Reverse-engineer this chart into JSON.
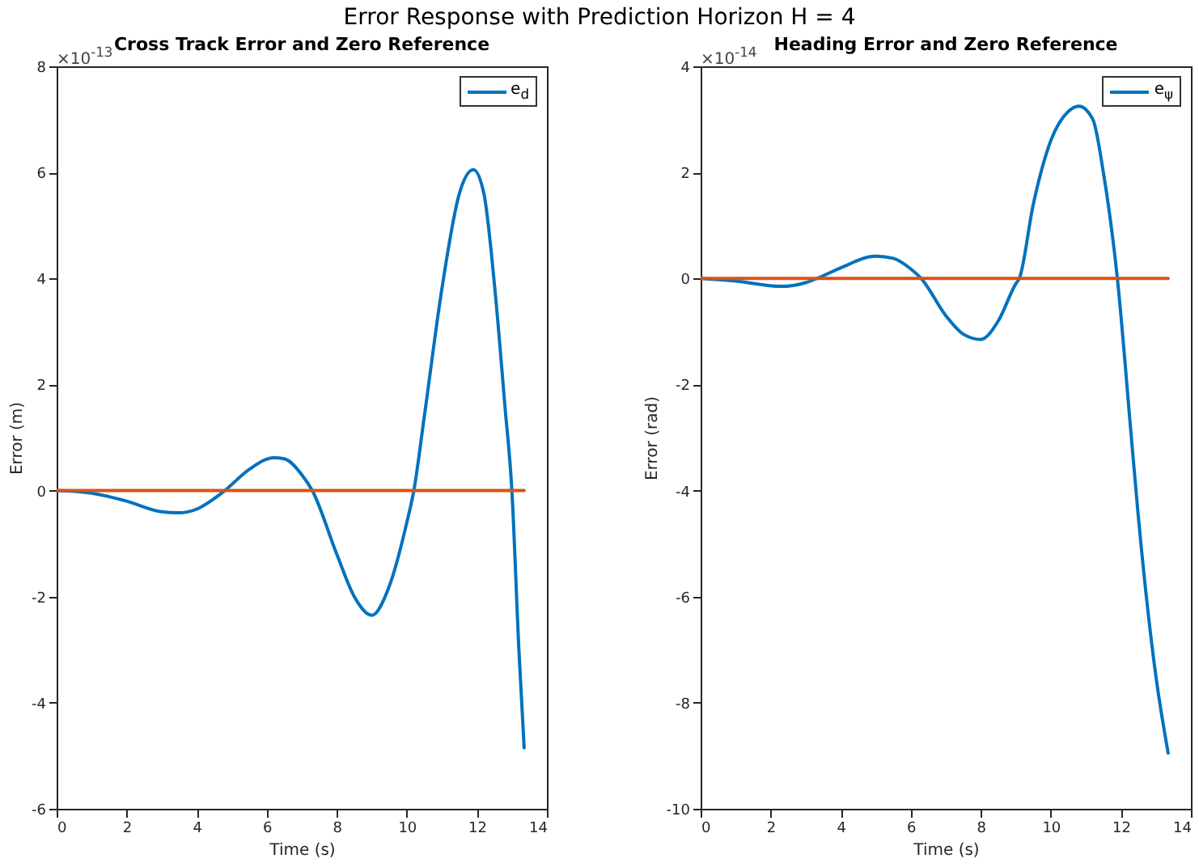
{
  "chart_data": [
    {
      "type": "line",
      "title": "Cross Track Error and Zero Reference",
      "xlabel": "Time (s)",
      "ylabel": "Error (m)",
      "annotations": [
        "Error Response with Prediction Horizon H = 4",
        "×10$^{-13}$"
      ],
      "xlim": [
        0,
        14
      ],
      "ylim": [
        -6,
        8
      ],
      "xticks": [
        0,
        2,
        4,
        6,
        8,
        10,
        12,
        14
      ],
      "yticks": [
        -6,
        -4,
        -2,
        0,
        2,
        4,
        6,
        8
      ],
      "legend": "top right",
      "series": [
        {
          "name": "e$_{d}$",
          "color": "#0072bd",
          "x": [
            0,
            1,
            2,
            3,
            3.5,
            4,
            4.5,
            4.8,
            5.5,
            6.2,
            6.5,
            7,
            7.3,
            8,
            8.5,
            9,
            9.5,
            10,
            10.2,
            10.5,
            11,
            11.5,
            11.9,
            12.2,
            12.5,
            12.8,
            13,
            13.2,
            13.35
          ],
          "values": [
            0,
            -0.05,
            -0.2,
            -0.4,
            -0.42,
            -0.35,
            -0.15,
            0,
            0.4,
            0.62,
            0.6,
            0.3,
            0,
            -1.2,
            -2.0,
            -2.35,
            -1.8,
            -0.6,
            0,
            1.4,
            3.8,
            5.6,
            6.05,
            5.6,
            3.9,
            1.6,
            0,
            -3.0,
            -4.85
          ]
        },
        {
          "color": "#d95319",
          "x": [
            0,
            13.35
          ],
          "values": [
            0,
            0
          ]
        }
      ]
    },
    {
      "type": "line",
      "title": "Heading Error and Zero Reference",
      "xlabel": "Time (s)",
      "ylabel": "Error (rad)",
      "annotations": [
        "×10$^{-14}$"
      ],
      "xlim": [
        0,
        14
      ],
      "ylim": [
        -10,
        4
      ],
      "xticks": [
        0,
        2,
        4,
        6,
        8,
        10,
        12,
        14
      ],
      "yticks": [
        -10,
        -8,
        -6,
        -4,
        -2,
        0,
        2,
        4
      ],
      "legend": "top right",
      "series": [
        {
          "name": "e$_{ψ}$",
          "color": "#0072bd",
          "x": [
            0,
            1,
            2.3,
            3,
            3.5,
            4,
            5,
            5.5,
            6,
            6.3,
            7,
            7.5,
            8,
            8.5,
            9,
            9.1,
            9.5,
            10,
            10.5,
            10.8,
            11.2,
            11.5,
            11.9,
            12.3,
            12.5,
            13,
            13.35
          ],
          "values": [
            0,
            -0.05,
            -0.15,
            -0.08,
            0.05,
            0.2,
            0.42,
            0.38,
            0.18,
            0,
            -0.7,
            -1.05,
            -1.15,
            -0.8,
            -0.1,
            0,
            1.4,
            2.6,
            3.15,
            3.25,
            3.0,
            2.0,
            0,
            -3.0,
            -4.5,
            -7.5,
            -8.95
          ]
        },
        {
          "color": "#d95319",
          "x": [
            0,
            13.35
          ],
          "values": [
            0,
            0
          ]
        }
      ]
    }
  ]
}
